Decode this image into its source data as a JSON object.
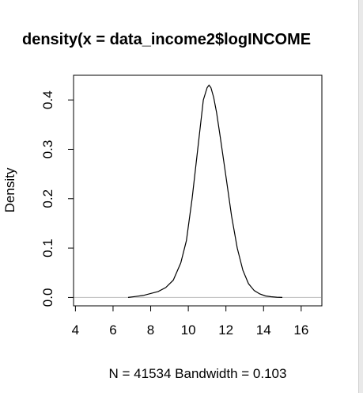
{
  "chart_data": {
    "type": "line",
    "title": "density(x = data_income2$logINCOME",
    "xlabel": "N = 41534   Bandwidth = 0.103",
    "ylabel": "Density",
    "xlim": [
      3.9,
      17.1
    ],
    "ylim": [
      -0.017,
      0.45
    ],
    "x_ticks": [
      4,
      6,
      8,
      10,
      12,
      14,
      16
    ],
    "x_tick_labels": [
      "4",
      "6",
      "8",
      "10",
      "12",
      "14",
      "16"
    ],
    "y_ticks": [
      0.0,
      0.1,
      0.2,
      0.3,
      0.4
    ],
    "y_tick_labels": [
      "0.0",
      "0.1",
      "0.2",
      "0.3",
      "0.4"
    ],
    "baseline": 0,
    "grid": false,
    "series": [
      {
        "x": [
          6.8,
          7.2,
          7.6,
          8.0,
          8.4,
          8.8,
          9.2,
          9.6,
          9.9,
          10.2,
          10.5,
          10.8,
          11.0,
          11.1,
          11.2,
          11.35,
          11.5,
          11.7,
          12.0,
          12.3,
          12.6,
          12.9,
          13.2,
          13.5,
          13.8,
          14.1,
          14.4,
          14.7,
          15.0
        ],
        "y": [
          0.0,
          0.002,
          0.004,
          0.008,
          0.012,
          0.02,
          0.035,
          0.07,
          0.115,
          0.2,
          0.3,
          0.4,
          0.425,
          0.43,
          0.425,
          0.405,
          0.375,
          0.325,
          0.245,
          0.165,
          0.1,
          0.055,
          0.028,
          0.014,
          0.007,
          0.003,
          0.0015,
          0.0005,
          0.0
        ]
      }
    ]
  }
}
